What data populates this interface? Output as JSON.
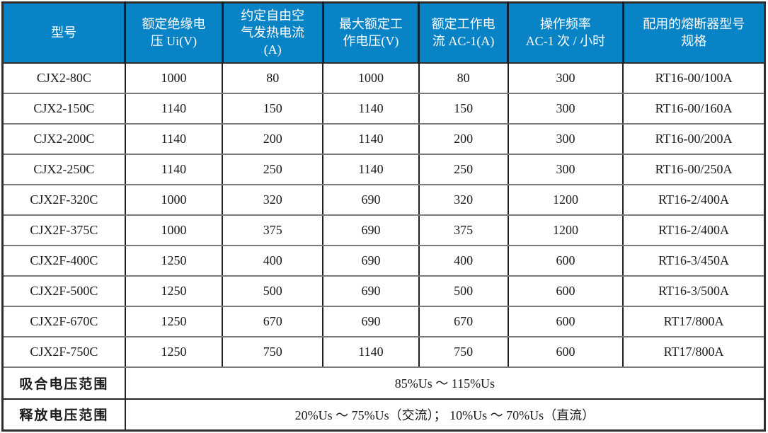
{
  "table": {
    "title": "contactor-specification-table",
    "colors": {
      "header_bg": "#0884C6",
      "header_text": "#FFFFFF",
      "grid_vertical": "#202020",
      "grid_horizontal": "#7A7A7A",
      "outer_border": "#2E2E2E"
    },
    "header": {
      "columns": [
        "型号",
        "额定绝缘电\n压 Ui(V)",
        "约定自由空\n气发热电流\n(A)",
        "最大额定工\n作电压(V)",
        "额定工作电\n流 AC-1(A)",
        "操作频率\nAC-1 次 / 小时",
        "配用的熔断器型号\n规格"
      ]
    },
    "rows": [
      [
        "CJX2-80C",
        "1000",
        "80",
        "1000",
        "80",
        "300",
        "RT16-00/100A"
      ],
      [
        "CJX2-150C",
        "1140",
        "150",
        "1140",
        "150",
        "300",
        "RT16-00/160A"
      ],
      [
        "CJX2-200C",
        "1140",
        "200",
        "1140",
        "200",
        "300",
        "RT16-00/200A"
      ],
      [
        "CJX2-250C",
        "1140",
        "250",
        "1140",
        "250",
        "300",
        "RT16-00/250A"
      ],
      [
        "CJX2F-320C",
        "1000",
        "320",
        "690",
        "320",
        "1200",
        "RT16-2/400A"
      ],
      [
        "CJX2F-375C",
        "1000",
        "375",
        "690",
        "375",
        "1200",
        "RT16-2/400A"
      ],
      [
        "CJX2F-400C",
        "1250",
        "400",
        "690",
        "400",
        "600",
        "RT16-3/450A"
      ],
      [
        "CJX2F-500C",
        "1250",
        "500",
        "690",
        "500",
        "600",
        "RT16-3/500A"
      ],
      [
        "CJX2F-670C",
        "1250",
        "670",
        "690",
        "670",
        "600",
        "RT17/800A"
      ],
      [
        "CJX2F-750C",
        "1250",
        "750",
        "1140",
        "750",
        "600",
        "RT17/800A"
      ]
    ],
    "footer": [
      {
        "label": "吸合电压范围",
        "value": "85%Us ～ 115%Us"
      },
      {
        "label": "释放电压范围",
        "value": "20%Us ～ 75%Us（交流）； 10%Us ～ 70%Us（直流）"
      }
    ]
  }
}
